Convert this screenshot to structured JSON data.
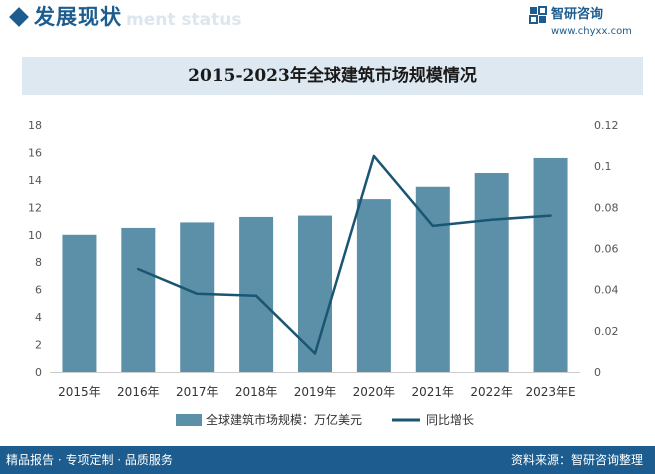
{
  "header": {
    "title": "发展现状",
    "subtitle": "ment status"
  },
  "brand": {
    "name": "智研咨询",
    "url": "www.chyxx.com",
    "logo_icon": "chyxx-logo-icon"
  },
  "footer": {
    "left": "精品报告 · 专项定制 · 品质服务",
    "right": "资料来源：智研咨询整理"
  },
  "colors": {
    "bar": "#5b90a8",
    "line": "#1a5572",
    "brand": "#1c5c8e",
    "title_band": "#dde8f1"
  },
  "chart_data": {
    "type": "bar",
    "title": "2015-2023年全球建筑市场规模情况",
    "categories": [
      "2015年",
      "2016年",
      "2017年",
      "2018年",
      "2019年",
      "2020年",
      "2021年",
      "2022年",
      "2023年E"
    ],
    "series": [
      {
        "name": "全球建筑市场规模：万亿美元",
        "type": "bar",
        "axis": "left",
        "values": [
          10.0,
          10.5,
          10.9,
          11.3,
          11.4,
          12.6,
          13.5,
          14.5,
          15.6
        ]
      },
      {
        "name": "同比增长",
        "type": "line",
        "axis": "right",
        "values": [
          null,
          0.05,
          0.038,
          0.037,
          0.009,
          0.105,
          0.071,
          0.074,
          0.076
        ]
      }
    ],
    "y_left": {
      "min": 0,
      "max": 18,
      "ticks": [
        "0",
        "2",
        "4",
        "6",
        "8",
        "10",
        "12",
        "14",
        "16",
        "18"
      ]
    },
    "y_right": {
      "min": 0,
      "max": 0.12,
      "ticks": [
        "0",
        "0.02",
        "0.04",
        "0.06",
        "0.08",
        "0.1",
        "0.12"
      ]
    },
    "grid": false,
    "legend_position": "bottom"
  }
}
